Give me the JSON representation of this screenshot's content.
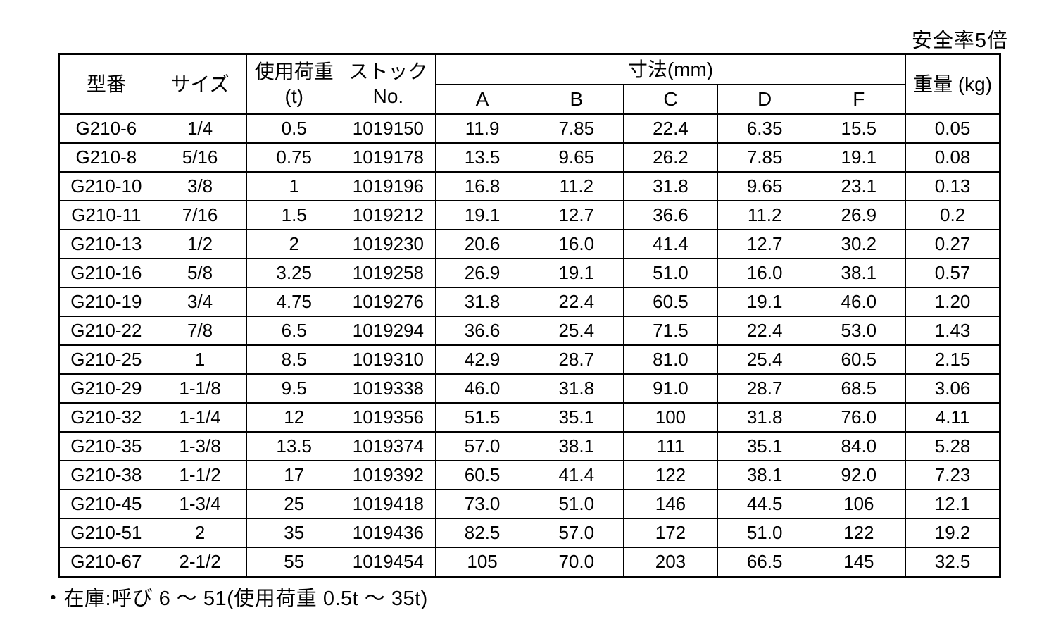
{
  "page": {
    "safety_note": "安全率5倍",
    "stock_note": "・在庫:呼び 6 ～ 51(使用荷重 0.5t ～ 35t)"
  },
  "table": {
    "headers": {
      "model": "型番",
      "size": "サイズ",
      "load": "使用荷重\n(t)",
      "stock_no": "ストック\nNo.",
      "dimensions": "寸法(mm)",
      "dim_cols": [
        "A",
        "B",
        "C",
        "D",
        "F"
      ],
      "weight": "重量 (kg)"
    },
    "columns_order": [
      "model",
      "size",
      "load_t",
      "stock_no",
      "A",
      "B",
      "C",
      "D",
      "F",
      "weight_kg"
    ],
    "rows": [
      [
        "G210-6",
        "1/4",
        "0.5",
        "1019150",
        "11.9",
        "7.85",
        "22.4",
        "6.35",
        "15.5",
        "0.05"
      ],
      [
        "G210-8",
        "5/16",
        "0.75",
        "1019178",
        "13.5",
        "9.65",
        "26.2",
        "7.85",
        "19.1",
        "0.08"
      ],
      [
        "G210-10",
        "3/8",
        "1",
        "1019196",
        "16.8",
        "11.2",
        "31.8",
        "9.65",
        "23.1",
        "0.13"
      ],
      [
        "G210-11",
        "7/16",
        "1.5",
        "1019212",
        "19.1",
        "12.7",
        "36.6",
        "11.2",
        "26.9",
        "0.2"
      ],
      [
        "G210-13",
        "1/2",
        "2",
        "1019230",
        "20.6",
        "16.0",
        "41.4",
        "12.7",
        "30.2",
        "0.27"
      ],
      [
        "G210-16",
        "5/8",
        "3.25",
        "1019258",
        "26.9",
        "19.1",
        "51.0",
        "16.0",
        "38.1",
        "0.57"
      ],
      [
        "G210-19",
        "3/4",
        "4.75",
        "1019276",
        "31.8",
        "22.4",
        "60.5",
        "19.1",
        "46.0",
        "1.20"
      ],
      [
        "G210-22",
        "7/8",
        "6.5",
        "1019294",
        "36.6",
        "25.4",
        "71.5",
        "22.4",
        "53.0",
        "1.43"
      ],
      [
        "G210-25",
        "1",
        "8.5",
        "1019310",
        "42.9",
        "28.7",
        "81.0",
        "25.4",
        "60.5",
        "2.15"
      ],
      [
        "G210-29",
        "1-1/8",
        "9.5",
        "1019338",
        "46.0",
        "31.8",
        "91.0",
        "28.7",
        "68.5",
        "3.06"
      ],
      [
        "G210-32",
        "1-1/4",
        "12",
        "1019356",
        "51.5",
        "35.1",
        "100",
        "31.8",
        "76.0",
        "4.11"
      ],
      [
        "G210-35",
        "1-3/8",
        "13.5",
        "1019374",
        "57.0",
        "38.1",
        "111",
        "35.1",
        "84.0",
        "5.28"
      ],
      [
        "G210-38",
        "1-1/2",
        "17",
        "1019392",
        "60.5",
        "41.4",
        "122",
        "38.1",
        "92.0",
        "7.23"
      ],
      [
        "G210-45",
        "1-3/4",
        "25",
        "1019418",
        "73.0",
        "51.0",
        "146",
        "44.5",
        "106",
        "12.1"
      ],
      [
        "G210-51",
        "2",
        "35",
        "1019436",
        "82.5",
        "57.0",
        "172",
        "51.0",
        "122",
        "19.2"
      ],
      [
        "G210-67",
        "2-1/2",
        "55",
        "1019454",
        "105",
        "70.0",
        "203",
        "66.5",
        "145",
        "32.5"
      ]
    ],
    "colors": {
      "border": "#000000",
      "text": "#000000",
      "background": "#ffffff"
    }
  }
}
